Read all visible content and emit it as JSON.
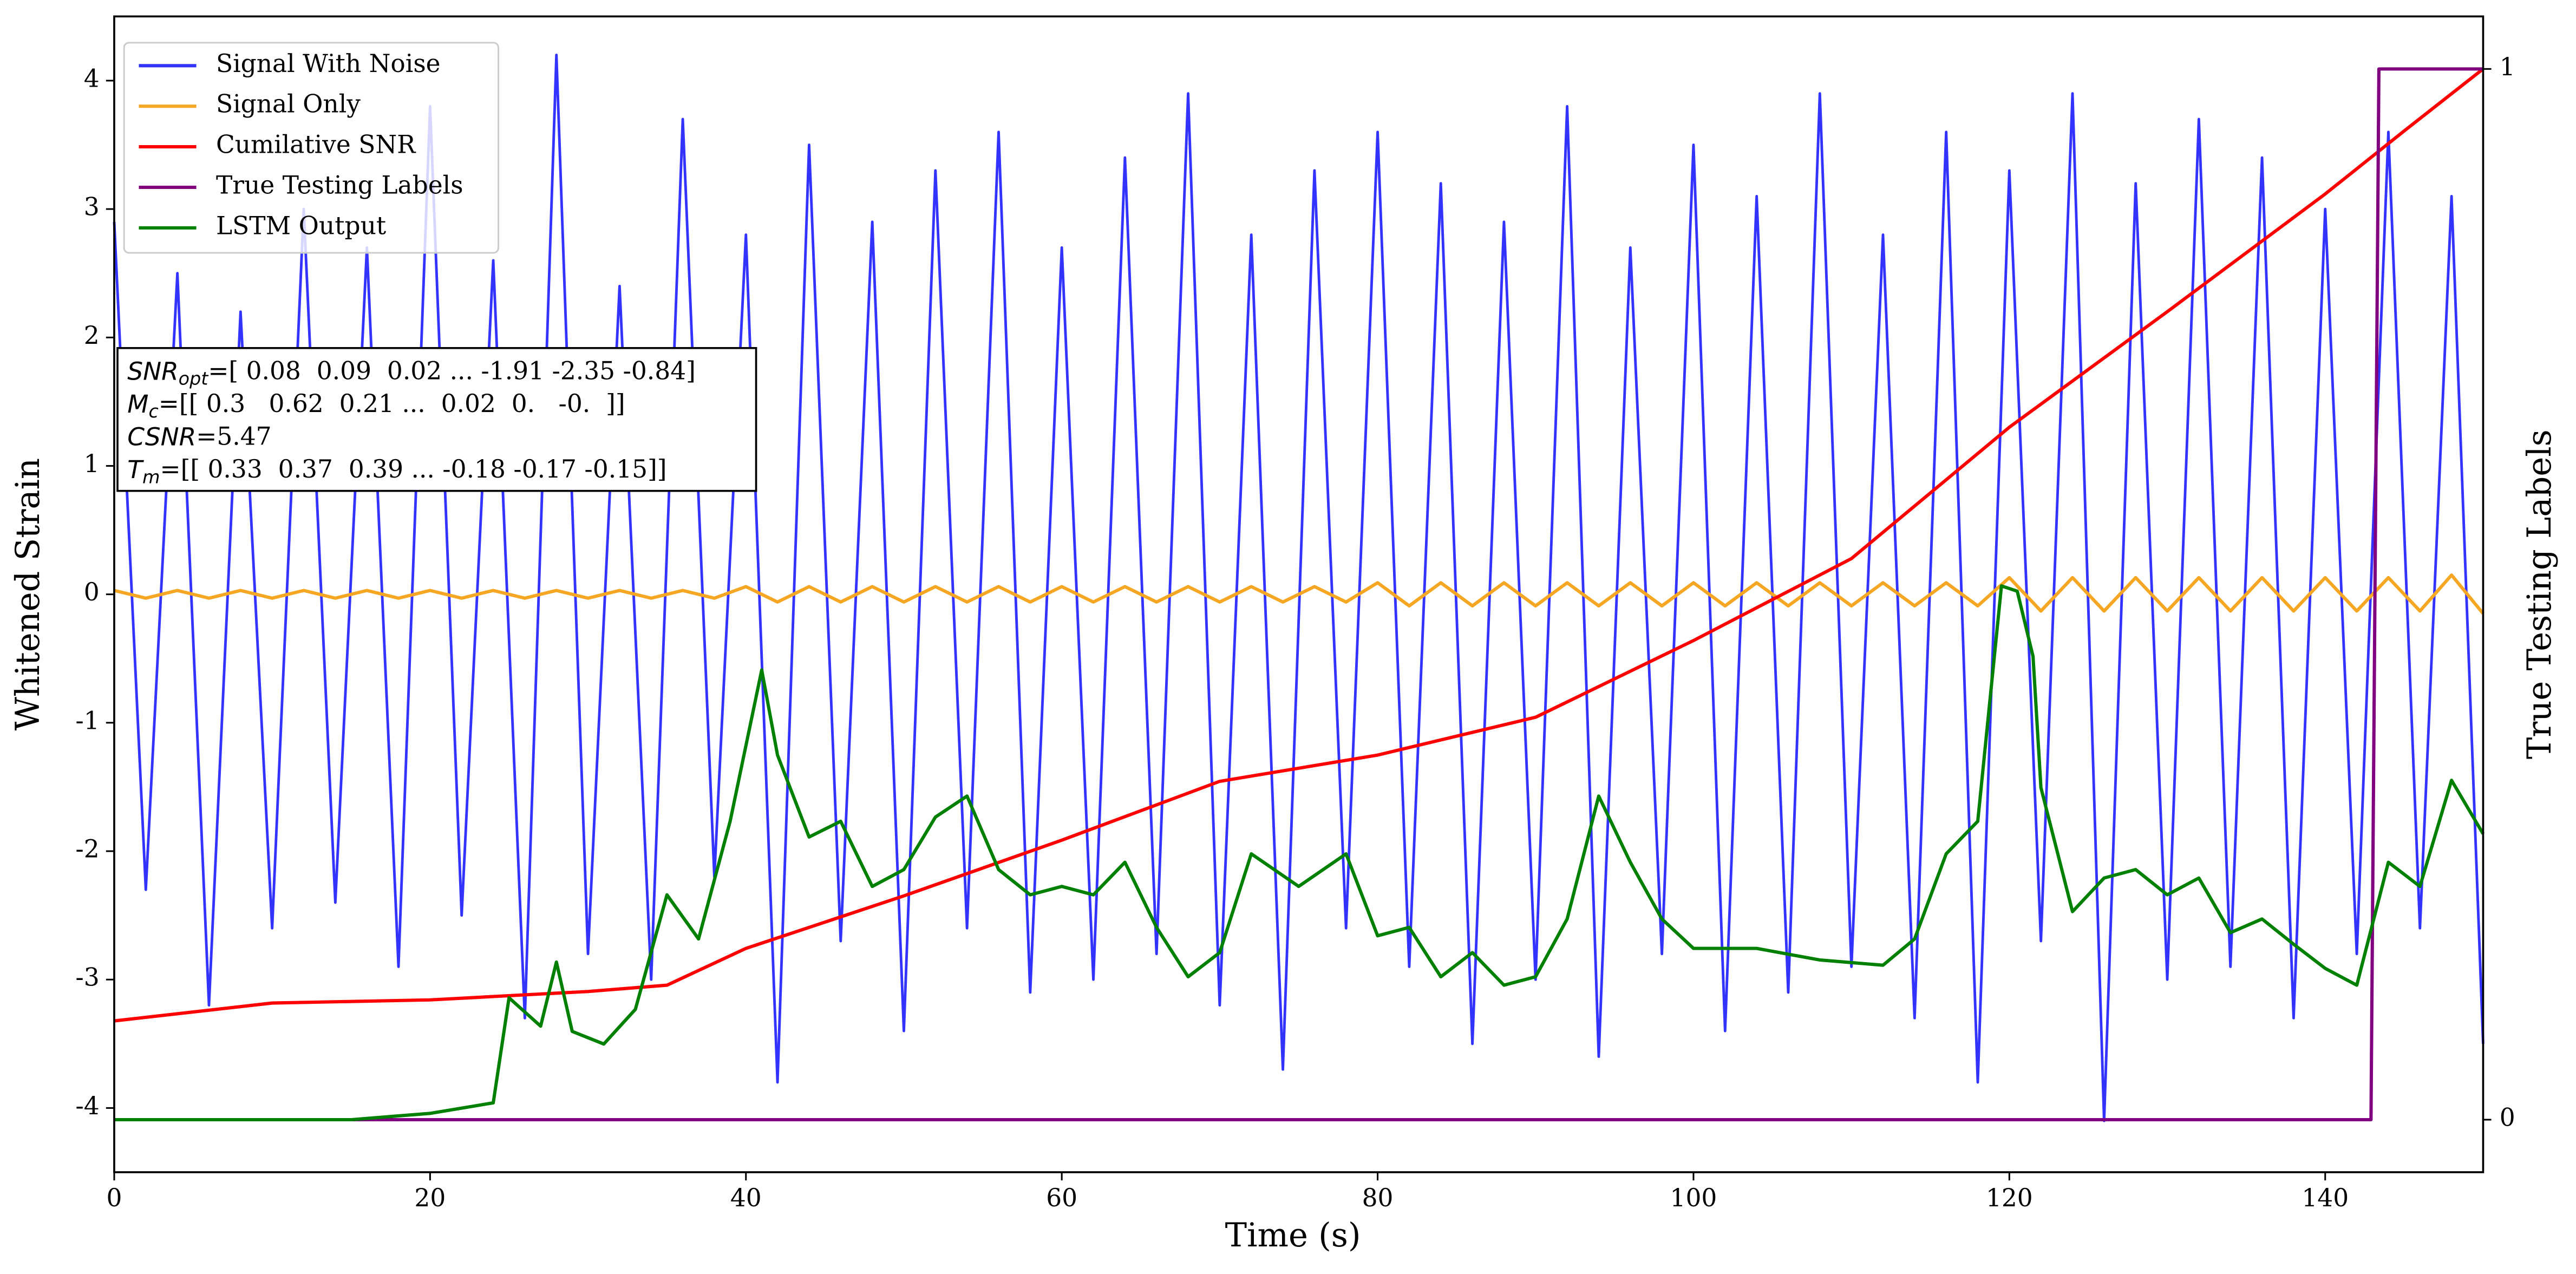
{
  "chart_data": {
    "type": "line",
    "xlabel": "Time (s)",
    "ylabel": "Whitened Strain",
    "y2label": "True Testing Labels",
    "xlim": [
      0,
      150
    ],
    "xticks": [
      0,
      20,
      40,
      60,
      80,
      100,
      120,
      140
    ],
    "ylim": [
      -4.5,
      4.5
    ],
    "yticks": [
      -4,
      -3,
      -2,
      -1,
      0,
      1,
      2,
      3,
      4
    ],
    "y2lim": [
      -0.05,
      1.05
    ],
    "y2ticks": [
      0,
      1
    ],
    "legend": "upper left",
    "annotation": [
      {
        "symbol": "SNR",
        "subscript": "opt",
        "text": "=[ 0.08  0.09  0.02 ... -1.91 -2.35 -0.84]"
      },
      {
        "symbol": "M",
        "subscript": "c",
        "text": "=[[ 0.3   0.62  0.21 ...  0.02  0.   -0.  ]]"
      },
      {
        "symbol": "CSNR",
        "text": "=5.47"
      },
      {
        "symbol": "T",
        "subscript": "m",
        "text": "=[[ 0.33  0.37  0.39 ... -0.18 -0.17 -0.15]]"
      }
    ],
    "series": [
      {
        "name": "Signal With Noise",
        "color": "#3333ff",
        "x": [
          0,
          2,
          4,
          6,
          8,
          10,
          12,
          14,
          16,
          18,
          20,
          22,
          24,
          26,
          28,
          30,
          32,
          34,
          36,
          38,
          40,
          42,
          44,
          46,
          48,
          50,
          52,
          54,
          56,
          58,
          60,
          62,
          64,
          66,
          68,
          70,
          72,
          74,
          76,
          78,
          80,
          82,
          84,
          86,
          88,
          90,
          92,
          94,
          96,
          98,
          100,
          102,
          104,
          106,
          108,
          110,
          112,
          114,
          116,
          118,
          120,
          122,
          124,
          126,
          128,
          130,
          132,
          134,
          136,
          138,
          140,
          142,
          144,
          146,
          148,
          150
        ],
        "values": [
          2.9,
          -2.3,
          2.5,
          -3.2,
          2.2,
          -2.6,
          3.0,
          -2.4,
          2.7,
          -2.9,
          3.8,
          -2.5,
          2.6,
          -3.3,
          4.2,
          -2.8,
          2.4,
          -3.0,
          3.7,
          -2.2,
          2.8,
          -3.8,
          3.5,
          -2.7,
          2.9,
          -3.4,
          3.3,
          -2.6,
          3.6,
          -3.1,
          2.7,
          -3.0,
          3.4,
          -2.8,
          3.9,
          -3.2,
          2.8,
          -3.7,
          3.3,
          -2.6,
          3.6,
          -2.9,
          3.2,
          -3.5,
          2.9,
          -3.0,
          3.8,
          -3.6,
          2.7,
          -2.8,
          3.5,
          -3.4,
          3.1,
          -3.1,
          3.9,
          -2.9,
          2.8,
          -3.3,
          3.6,
          -3.8,
          3.3,
          -2.7,
          3.9,
          -4.1,
          3.2,
          -3.0,
          3.7,
          -2.9,
          3.4,
          -3.3,
          3.0,
          -2.8,
          3.6,
          -2.6,
          3.1,
          -3.5
        ]
      },
      {
        "name": "Signal Only",
        "color": "#f5a623",
        "x": [
          0,
          2,
          4,
          6,
          8,
          10,
          12,
          14,
          16,
          18,
          20,
          22,
          24,
          26,
          28,
          30,
          32,
          34,
          36,
          38,
          40,
          42,
          44,
          46,
          48,
          50,
          52,
          54,
          56,
          58,
          60,
          62,
          64,
          66,
          68,
          70,
          72,
          74,
          76,
          78,
          80,
          82,
          84,
          86,
          88,
          90,
          92,
          94,
          96,
          98,
          100,
          102,
          104,
          106,
          108,
          110,
          112,
          114,
          116,
          118,
          120,
          122,
          124,
          126,
          128,
          130,
          132,
          134,
          136,
          138,
          140,
          142,
          144,
          146,
          148,
          150
        ],
        "values": [
          0.03,
          -0.03,
          0.03,
          -0.03,
          0.03,
          -0.03,
          0.03,
          -0.03,
          0.03,
          -0.03,
          0.03,
          -0.03,
          0.03,
          -0.03,
          0.03,
          -0.03,
          0.03,
          -0.03,
          0.03,
          -0.03,
          0.06,
          -0.06,
          0.06,
          -0.06,
          0.06,
          -0.06,
          0.06,
          -0.06,
          0.06,
          -0.06,
          0.06,
          -0.06,
          0.06,
          -0.06,
          0.06,
          -0.06,
          0.06,
          -0.06,
          0.06,
          -0.06,
          0.09,
          -0.09,
          0.09,
          -0.09,
          0.09,
          -0.09,
          0.09,
          -0.09,
          0.09,
          -0.09,
          0.09,
          -0.09,
          0.09,
          -0.09,
          0.09,
          -0.09,
          0.09,
          -0.09,
          0.09,
          -0.09,
          0.13,
          -0.13,
          0.13,
          -0.13,
          0.13,
          -0.13,
          0.13,
          -0.13,
          0.13,
          -0.13,
          0.13,
          -0.13,
          0.13,
          -0.13,
          0.15,
          -0.15
        ]
      },
      {
        "name": "Cumilative SNR",
        "color": "#ff0000",
        "axis": "y2",
        "x": [
          0,
          10,
          20,
          30,
          35,
          40,
          50,
          60,
          70,
          80,
          90,
          100,
          110,
          120,
          130,
          140,
          145,
          150
        ],
        "values": [
          0.094,
          0.111,
          0.114,
          0.122,
          0.128,
          0.163,
          0.213,
          0.266,
          0.322,
          0.347,
          0.383,
          0.456,
          0.534,
          0.659,
          0.769,
          0.881,
          0.941,
          1.0
        ]
      },
      {
        "name": "True Testing Labels",
        "color": "#800080",
        "axis": "y2",
        "x": [
          0,
          142.9,
          143.4,
          150
        ],
        "values": [
          0,
          0,
          1,
          1
        ]
      },
      {
        "name": "LSTM Output",
        "color": "#008000",
        "axis": "y2",
        "x": [
          0,
          15,
          20,
          24,
          25,
          27,
          28,
          29,
          31,
          33,
          35,
          37,
          39,
          41,
          42,
          44,
          46,
          48,
          50,
          52,
          54,
          56,
          58,
          60,
          62,
          64,
          66,
          68,
          70,
          72,
          75,
          78,
          80,
          82,
          84,
          86,
          88,
          90,
          92,
          94,
          96,
          98,
          100,
          104,
          108,
          112,
          114,
          116,
          118,
          119.5,
          120.5,
          121.5,
          122,
          124,
          126,
          128,
          130,
          132,
          134,
          136,
          138,
          140,
          142,
          144,
          146,
          148,
          150
        ],
        "values": [
          0,
          0,
          0.006,
          0.016,
          0.116,
          0.089,
          0.15,
          0.084,
          0.072,
          0.105,
          0.214,
          0.172,
          0.284,
          0.428,
          0.347,
          0.269,
          0.284,
          0.222,
          0.238,
          0.288,
          0.308,
          0.238,
          0.214,
          0.222,
          0.214,
          0.245,
          0.183,
          0.136,
          0.159,
          0.253,
          0.222,
          0.253,
          0.175,
          0.183,
          0.136,
          0.159,
          0.128,
          0.136,
          0.191,
          0.308,
          0.245,
          0.191,
          0.163,
          0.163,
          0.152,
          0.147,
          0.172,
          0.253,
          0.284,
          0.508,
          0.503,
          0.441,
          0.316,
          0.198,
          0.23,
          0.238,
          0.214,
          0.23,
          0.178,
          0.191,
          0.167,
          0.144,
          0.128,
          0.245,
          0.222,
          0.323,
          0.272
        ]
      }
    ]
  }
}
